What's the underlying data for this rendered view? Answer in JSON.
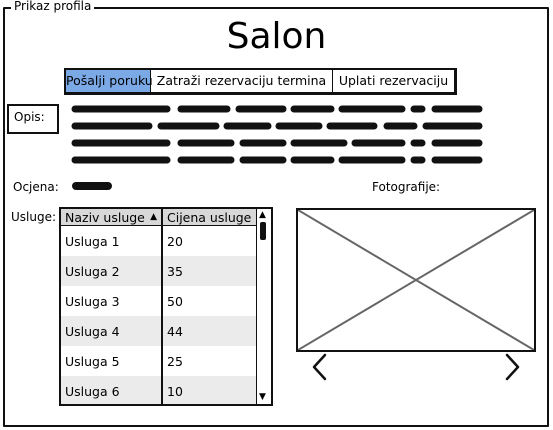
{
  "frame": {
    "legend": "Prikaz profila"
  },
  "page_title": "Salon",
  "tabs": [
    {
      "label": "Pošalji poruku",
      "active": true
    },
    {
      "label": "Zatraži rezervaciju termina",
      "active": false
    },
    {
      "label": "Uplati rezervaciju",
      "active": false
    }
  ],
  "description": {
    "label": "Opis:"
  },
  "rating": {
    "label": "Ocjena:"
  },
  "photos": {
    "label": "Fotografije:",
    "prev_icon": "chevron-left-icon",
    "next_icon": "chevron-right-icon"
  },
  "services": {
    "label": "Usluge:",
    "columns": [
      "Naziv usluge",
      "Cijena usluge"
    ],
    "rows": [
      [
        "Usluga 1",
        "20"
      ],
      [
        "Usluga 2",
        "35"
      ],
      [
        "Usluga 3",
        "50"
      ],
      [
        "Usluga 4",
        "44"
      ],
      [
        "Usluga 5",
        "25"
      ],
      [
        "Usluga 6",
        "10"
      ]
    ]
  },
  "colors": {
    "active_tab": "#7aa9e6",
    "alt_row": "#ebebeb",
    "header": "#d8d8d8"
  }
}
